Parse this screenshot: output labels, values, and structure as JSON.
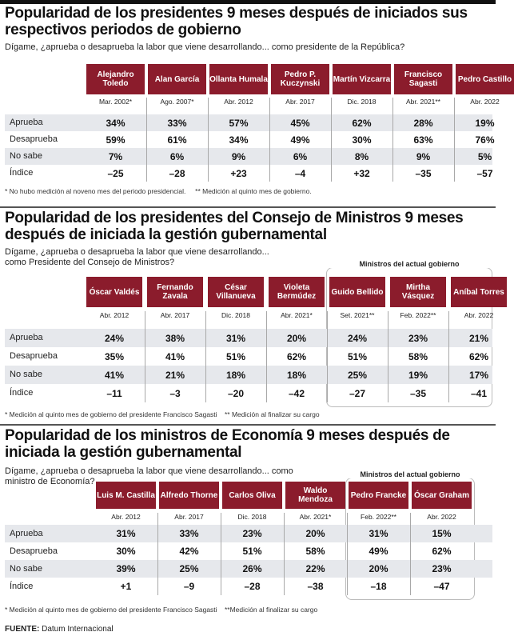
{
  "sections": [
    {
      "title": "Popularidad de los presidentes 9 meses después de iniciados sus respectivos periodos de gobierno",
      "question": "Dígame, ¿aprueba o desaprueba la labor que viene desarrollando... como presidente de la República?",
      "current_gov_label": "",
      "columns": [
        {
          "name": "Alejandro Toledo",
          "date": "Mar. 2002*"
        },
        {
          "name": "Alan García",
          "date": "Ago. 2007*"
        },
        {
          "name": "Ollanta Humala",
          "date": "Abr. 2012"
        },
        {
          "name": "Pedro P. Kuczynski",
          "date": "Abr. 2017"
        },
        {
          "name": "Martín Vizcarra",
          "date": "Dic. 2018"
        },
        {
          "name": "Francisco Sagasti",
          "date": "Abr. 2021**"
        },
        {
          "name": "Pedro Castillo",
          "date": "Abr. 2022"
        }
      ],
      "rows": [
        {
          "label": "Aprueba",
          "values": [
            "34%",
            "33%",
            "57%",
            "45%",
            "62%",
            "28%",
            "19%"
          ]
        },
        {
          "label": "Desaprueba",
          "values": [
            "59%",
            "61%",
            "34%",
            "49%",
            "30%",
            "63%",
            "76%"
          ]
        },
        {
          "label": "No sabe",
          "values": [
            "7%",
            "6%",
            "9%",
            "6%",
            "8%",
            "9%",
            "5%"
          ]
        },
        {
          "label": "Índice",
          "values": [
            "–25",
            "–28",
            "+23",
            "–4",
            "+32",
            "–35",
            "–57"
          ]
        }
      ],
      "notes": "* No hubo medición al noveno mes del periodo presidencial.     ** Medición al quinto mes de gobierno."
    },
    {
      "title": "Popularidad de los presidentes  del Consejo de Ministros 9 meses después de iniciada la gestión gubernamental",
      "question": "Dígame, ¿aprueba o desaprueba la labor que viene desarrollando... como Presidente del Consejo de Ministros?",
      "current_gov_label": "Ministros del actual gobierno",
      "columns": [
        {
          "name": "Óscar Valdés",
          "date": "Abr. 2012"
        },
        {
          "name": "Fernando Zavala",
          "date": "Abr. 2017"
        },
        {
          "name": "César Villanueva",
          "date": "Dic. 2018"
        },
        {
          "name": "Violeta Bermúdez",
          "date": "Abr. 2021*"
        },
        {
          "name": "Guido Bellido",
          "date": "Set. 2021**"
        },
        {
          "name": "Mirtha Vásquez",
          "date": "Feb. 2022**"
        },
        {
          "name": "Aníbal Torres",
          "date": "Abr. 2022"
        }
      ],
      "rows": [
        {
          "label": "Aprueba",
          "values": [
            "24%",
            "38%",
            "31%",
            "20%",
            "24%",
            "23%",
            "21%"
          ]
        },
        {
          "label": "Desaprueba",
          "values": [
            "35%",
            "41%",
            "51%",
            "62%",
            "51%",
            "58%",
            "62%"
          ]
        },
        {
          "label": "No sabe",
          "values": [
            "41%",
            "21%",
            "18%",
            "18%",
            "25%",
            "19%",
            "17%"
          ]
        },
        {
          "label": "Índice",
          "values": [
            "–11",
            "–3",
            "–20",
            "–42",
            "–27",
            "–35",
            "–41"
          ]
        }
      ],
      "notes": "* Medición al quinto mes de gobierno del presidente Francisco Sagasti    ** Medición al finalizar su cargo"
    },
    {
      "title": "Popularidad de los ministros de Economía 9 meses después de iniciada la gestión gubernamental",
      "question": "Dígame, ¿aprueba o desaprueba la labor que viene desarrollando... como ministro de Economía?",
      "current_gov_label": "Ministros del actual gobierno",
      "columns": [
        {
          "name": "Luis M. Castilla",
          "date": "Abr. 2012"
        },
        {
          "name": "Alfredo Thorne",
          "date": "Abr. 2017"
        },
        {
          "name": "Carlos Oliva",
          "date": "Dic. 2018"
        },
        {
          "name": "Waldo Mendoza",
          "date": "Abr. 2021*"
        },
        {
          "name": "Pedro Francke",
          "date": "Feb. 2022**"
        },
        {
          "name": "Óscar Graham",
          "date": "Abr. 2022"
        }
      ],
      "rows": [
        {
          "label": "Aprueba",
          "values": [
            "31%",
            "33%",
            "23%",
            "20%",
            "31%",
            "15%"
          ]
        },
        {
          "label": "Desaprueba",
          "values": [
            "30%",
            "42%",
            "51%",
            "58%",
            "49%",
            "62%"
          ]
        },
        {
          "label": "No sabe",
          "values": [
            "39%",
            "25%",
            "26%",
            "22%",
            "20%",
            "23%"
          ]
        },
        {
          "label": "Índice",
          "values": [
            "+1",
            "–9",
            "–28",
            "–38",
            "–18",
            "–47"
          ]
        }
      ],
      "notes": "* Medición al quinto mes de gobierno del presidente Francisco Sagasti    **Medición al finalizar su cargo"
    }
  ],
  "source": {
    "label": "FUENTE:",
    "text": "Datum Internacional"
  },
  "colors": {
    "header_bg": "#8b1c2c",
    "row_gray": "#e6e8ec"
  }
}
